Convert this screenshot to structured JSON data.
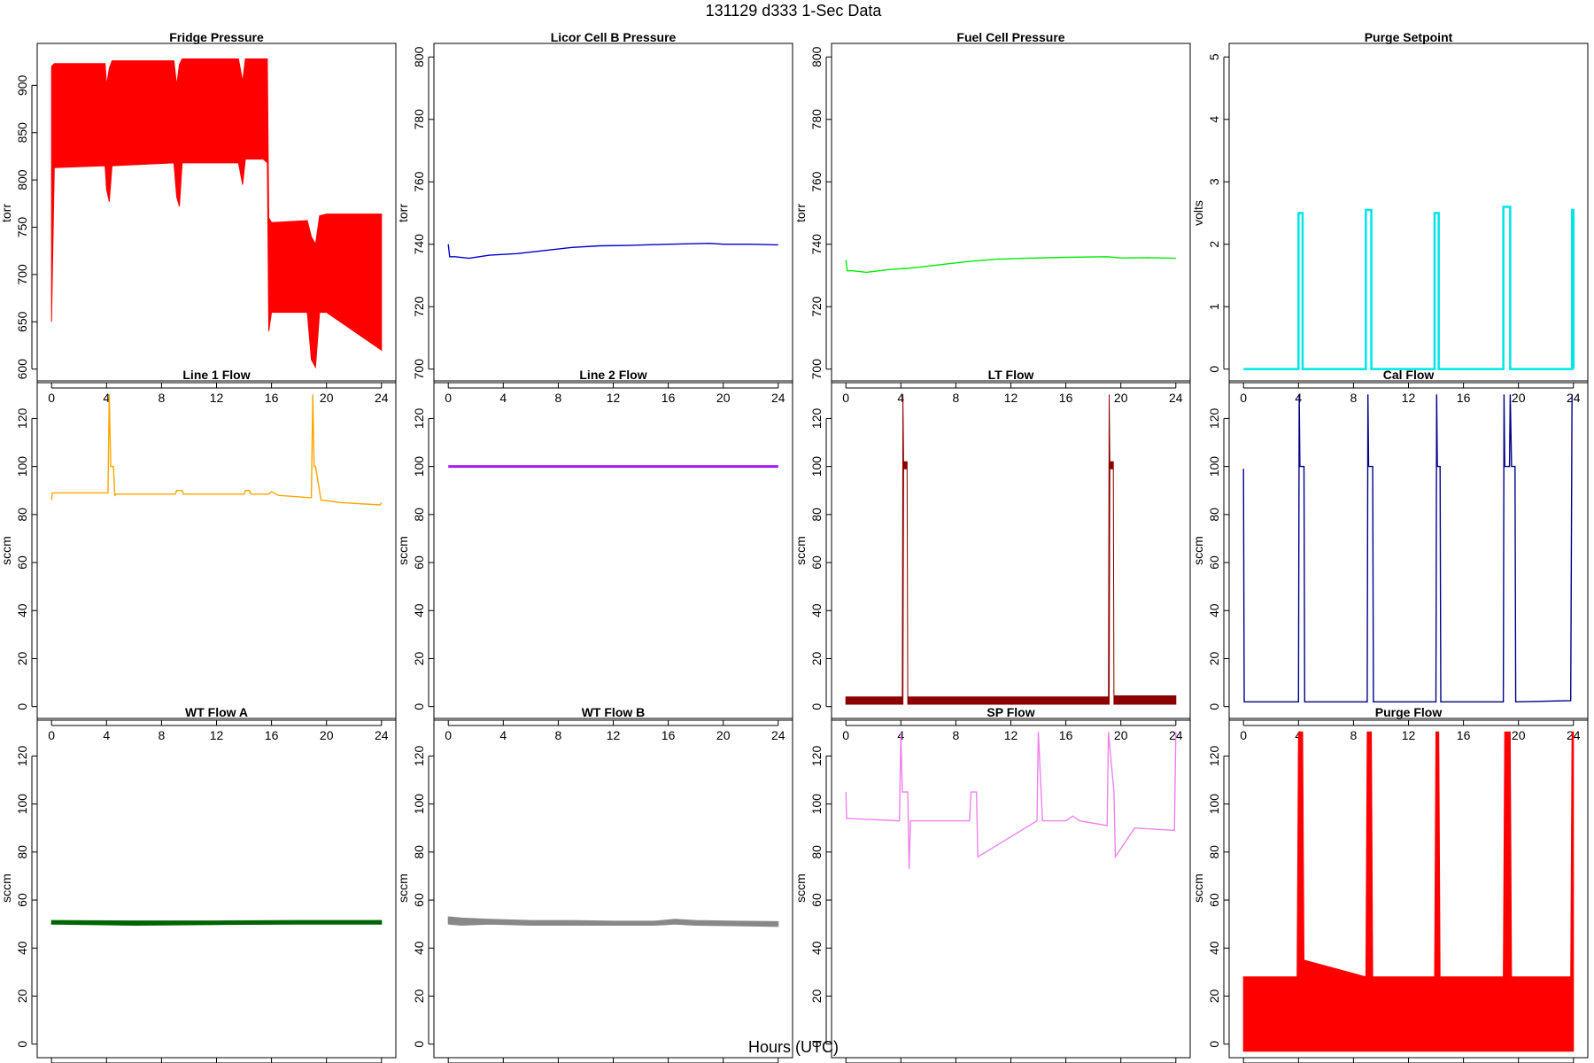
{
  "figure": {
    "title": "131129   d333   1-Sec Data",
    "xlabel": "Hours (UTC)"
  },
  "chart_data": [
    {
      "type": "line",
      "title": "Fridge Pressure",
      "ylabel": "torr",
      "xlim": [
        0,
        24
      ],
      "ylim": [
        600,
        930
      ],
      "xticks": [
        0,
        4,
        8,
        12,
        16,
        20,
        24
      ],
      "yticks": [
        600,
        650,
        700,
        750,
        800,
        850,
        900
      ],
      "series": [
        {
          "color": "#ff0000",
          "style": "band",
          "x": [
            0,
            0.2,
            3.9,
            4.0,
            4.2,
            4.4,
            8.9,
            9.1,
            9.3,
            9.5,
            13.6,
            13.9,
            14.1,
            15.4,
            15.7,
            15.8,
            16.0,
            18.6,
            18.9,
            19.2,
            19.5,
            20.0,
            24.0
          ],
          "upper": [
            920,
            923,
            923,
            900,
            918,
            926,
            926,
            900,
            922,
            928,
            928,
            904,
            928,
            928,
            928,
            760,
            755,
            757,
            740,
            732,
            762,
            764,
            764
          ],
          "lower": [
            650,
            813,
            815,
            790,
            777,
            815,
            818,
            782,
            772,
            818,
            818,
            795,
            822,
            822,
            818,
            640,
            660,
            660,
            610,
            602,
            660,
            660,
            620
          ]
        }
      ]
    },
    {
      "type": "line",
      "title": "Licor Cell B Pressure",
      "ylabel": "torr",
      "xlim": [
        0,
        24
      ],
      "ylim": [
        700,
        800
      ],
      "xticks": [
        0,
        4,
        8,
        12,
        16,
        20,
        24
      ],
      "yticks": [
        700,
        720,
        740,
        760,
        780,
        800
      ],
      "series": [
        {
          "color": "#0000cd",
          "style": "line",
          "x": [
            0,
            0.1,
            0.5,
            1.5,
            3,
            5,
            7,
            9,
            11,
            13,
            16,
            19,
            20,
            22,
            24
          ],
          "y": [
            740,
            736,
            736,
            735.5,
            736.5,
            737,
            738,
            739,
            739.5,
            739.6,
            740,
            740.3,
            740,
            740,
            739.8
          ]
        }
      ]
    },
    {
      "type": "line",
      "title": "Fuel Cell Pressure",
      "ylabel": "torr",
      "xlim": [
        0,
        24
      ],
      "ylim": [
        700,
        800
      ],
      "xticks": [
        0,
        4,
        8,
        12,
        16,
        20,
        24
      ],
      "yticks": [
        700,
        720,
        740,
        760,
        780,
        800
      ],
      "series": [
        {
          "color": "#00ee00",
          "style": "line",
          "x": [
            0,
            0.1,
            0.5,
            1.5,
            3,
            5,
            7,
            9,
            11,
            13,
            16,
            19,
            20,
            22,
            24
          ],
          "y": [
            735,
            731.5,
            731.5,
            731,
            731.8,
            732.5,
            733.5,
            734.5,
            735.2,
            735.5,
            735.8,
            736,
            735.6,
            735.7,
            735.5
          ]
        }
      ]
    },
    {
      "type": "line",
      "title": "Purge Setpoint",
      "ylabel": "volts",
      "xlim": [
        0,
        24
      ],
      "ylim": [
        0,
        5
      ],
      "xticks": [
        0,
        4,
        8,
        12,
        16,
        20,
        24
      ],
      "yticks": [
        0,
        1,
        2,
        3,
        4,
        5
      ],
      "series": [
        {
          "color": "#00e5e5",
          "style": "spikes",
          "baseline": 0,
          "pulses": [
            [
              4.0,
              4.3,
              2.5
            ],
            [
              8.9,
              9.3,
              2.55
            ],
            [
              13.9,
              14.2,
              2.5
            ],
            [
              18.9,
              19.4,
              2.6
            ],
            [
              23.9,
              24.0,
              2.55
            ]
          ]
        }
      ]
    },
    {
      "type": "line",
      "title": "Line 1 Flow",
      "ylabel": "sccm",
      "xlim": [
        0,
        24
      ],
      "ylim": [
        0,
        130
      ],
      "xticks": [
        0,
        4,
        8,
        12,
        16,
        20,
        24
      ],
      "yticks": [
        0,
        20,
        40,
        60,
        80,
        100,
        120
      ],
      "series": [
        {
          "color": "#ffa500",
          "style": "line",
          "x": [
            0,
            0.05,
            0.1,
            4.0,
            4.1,
            4.2,
            4.3,
            4.5,
            4.6,
            4.7,
            9.0,
            9.1,
            9.5,
            9.6,
            14.0,
            14.1,
            14.4,
            14.5,
            15.8,
            16.0,
            16.5,
            18.9,
            19.0,
            19.1,
            19.2,
            19.6,
            19.7,
            21,
            23.9,
            24.0
          ],
          "y": [
            86,
            89,
            89,
            89,
            89,
            130,
            100,
            100,
            88,
            88.5,
            88.5,
            90,
            90,
            88.5,
            88.5,
            90,
            90,
            88.5,
            88.5,
            89.5,
            88,
            87,
            130,
            100,
            100,
            86,
            86,
            85,
            84,
            85
          ]
        }
      ]
    },
    {
      "type": "line",
      "title": "Line 2 Flow",
      "ylabel": "sccm",
      "xlim": [
        0,
        24
      ],
      "ylim": [
        0,
        130
      ],
      "xticks": [
        0,
        4,
        8,
        12,
        16,
        20,
        24
      ],
      "yticks": [
        0,
        20,
        40,
        60,
        80,
        100,
        120
      ],
      "series": [
        {
          "color": "#a020f0",
          "style": "line",
          "width": 3,
          "x": [
            0,
            24
          ],
          "y": [
            100,
            100
          ]
        }
      ]
    },
    {
      "type": "line",
      "title": "LT Flow",
      "ylabel": "sccm",
      "xlim": [
        0,
        24
      ],
      "ylim": [
        0,
        130
      ],
      "xticks": [
        0,
        4,
        8,
        12,
        16,
        20,
        24
      ],
      "yticks": [
        0,
        20,
        40,
        60,
        80,
        100,
        120
      ],
      "series": [
        {
          "color": "#8b0000",
          "style": "band",
          "x": [
            0,
            4.1,
            4.15,
            4.2,
            4.45,
            4.5,
            19.1,
            19.15,
            19.2,
            19.45,
            19.5,
            24
          ],
          "upper": [
            4,
            4,
            130,
            102,
            102,
            4,
            4,
            130,
            102,
            102,
            4.5,
            4.5
          ],
          "lower": [
            1,
            1,
            1,
            99,
            99,
            1,
            1,
            1,
            99,
            99,
            1,
            1
          ]
        }
      ]
    },
    {
      "type": "line",
      "title": "Cal Flow",
      "ylabel": "sccm",
      "xlim": [
        0,
        24
      ],
      "ylim": [
        0,
        130
      ],
      "xticks": [
        0,
        4,
        8,
        12,
        16,
        20,
        24
      ],
      "yticks": [
        0,
        20,
        40,
        60,
        80,
        100,
        120
      ],
      "series": [
        {
          "color": "#00008b",
          "style": "line",
          "x": [
            0,
            0.05,
            0.1,
            4.0,
            4.05,
            4.1,
            4.4,
            4.45,
            9.0,
            9.05,
            9.1,
            9.4,
            9.45,
            14.0,
            14.05,
            14.1,
            14.3,
            14.35,
            18.9,
            18.95,
            19.0,
            19.35,
            19.4,
            19.5,
            19.75,
            19.8,
            23.8,
            23.9
          ],
          "y": [
            99,
            2,
            2,
            2,
            130,
            100,
            100,
            2,
            2,
            130,
            100,
            100,
            2,
            2,
            130,
            100,
            100,
            2,
            2,
            130,
            100,
            100,
            130,
            100,
            100,
            2,
            2.5,
            130
          ]
        }
      ]
    },
    {
      "type": "line",
      "title": "WT Flow A",
      "ylabel": "sccm",
      "xlim": [
        0,
        24
      ],
      "ylim": [
        0,
        130
      ],
      "xticks": [
        0,
        4,
        8,
        12,
        16,
        20,
        24
      ],
      "yticks": [
        0,
        20,
        40,
        60,
        80,
        100,
        120
      ],
      "series": [
        {
          "color": "#006400",
          "style": "band",
          "x": [
            0,
            6,
            12,
            18,
            24
          ],
          "upper": [
            51.5,
            51.3,
            51.3,
            51.5,
            51.5
          ],
          "lower": [
            50,
            49.5,
            49.8,
            50,
            50
          ]
        }
      ]
    },
    {
      "type": "line",
      "title": "WT Flow B",
      "ylabel": "sccm",
      "xlim": [
        0,
        24
      ],
      "ylim": [
        0,
        130
      ],
      "xticks": [
        0,
        4,
        8,
        12,
        16,
        20,
        24
      ],
      "yticks": [
        0,
        20,
        40,
        60,
        80,
        100,
        120
      ],
      "series": [
        {
          "color": "#888888",
          "style": "band",
          "x": [
            0,
            1,
            3,
            6,
            9,
            12,
            15,
            16.5,
            18,
            21,
            24
          ],
          "upper": [
            53,
            52.5,
            52,
            51.5,
            51.5,
            51.2,
            51.2,
            52,
            51.5,
            51.2,
            51
          ],
          "lower": [
            50,
            49.5,
            50,
            49.5,
            49.5,
            49.5,
            49.5,
            50,
            49.5,
            49.3,
            49
          ]
        }
      ]
    },
    {
      "type": "line",
      "title": "SP Flow",
      "ylabel": "sccm",
      "xlim": [
        0,
        24
      ],
      "ylim": [
        0,
        130
      ],
      "xticks": [
        0,
        4,
        8,
        12,
        16,
        20,
        24
      ],
      "yticks": [
        0,
        20,
        40,
        60,
        80,
        100,
        120
      ],
      "series": [
        {
          "color": "#ee82ee",
          "style": "line",
          "x": [
            0,
            0.05,
            0.1,
            3.9,
            4.0,
            4.1,
            4.5,
            4.6,
            4.7,
            4.8,
            9.0,
            9.1,
            9.5,
            9.6,
            13.9,
            14.0,
            14.2,
            14.3,
            16.0,
            16.5,
            17,
            19.0,
            19.1,
            19.5,
            19.6,
            21,
            23.9,
            24.0
          ],
          "y": [
            105,
            94,
            94,
            93,
            130,
            105,
            105,
            73,
            93,
            93,
            93,
            105,
            105,
            78,
            93,
            130,
            105,
            93,
            93,
            95,
            93,
            91,
            130,
            105,
            78,
            90,
            89,
            130
          ]
        }
      ]
    },
    {
      "type": "line",
      "title": "Purge Flow",
      "ylabel": "sccm",
      "xlim": [
        0,
        24
      ],
      "ylim": [
        0,
        130
      ],
      "xticks": [
        0,
        4,
        8,
        12,
        16,
        20,
        24
      ],
      "yticks": [
        0,
        20,
        40,
        60,
        80,
        100,
        120
      ],
      "series": [
        {
          "color": "#ff0000",
          "style": "band",
          "x": [
            0,
            3.9,
            4.0,
            4.3,
            4.4,
            8.9,
            9.0,
            9.3,
            9.4,
            13.9,
            14.0,
            14.2,
            14.3,
            18.9,
            19.0,
            19.4,
            19.5,
            23.8,
            23.9,
            24.0
          ],
          "upper": [
            28,
            28,
            130,
            130,
            35,
            28,
            130,
            130,
            28,
            28,
            130,
            130,
            28,
            28,
            130,
            130,
            28,
            28,
            130,
            130
          ],
          "lower": [
            -3,
            -3,
            -3,
            -3,
            -3,
            -3,
            -3,
            -3,
            -3,
            -3,
            -3,
            -3,
            -3,
            -3,
            -3,
            -3,
            -3,
            -3,
            -3,
            -3
          ]
        }
      ]
    }
  ]
}
